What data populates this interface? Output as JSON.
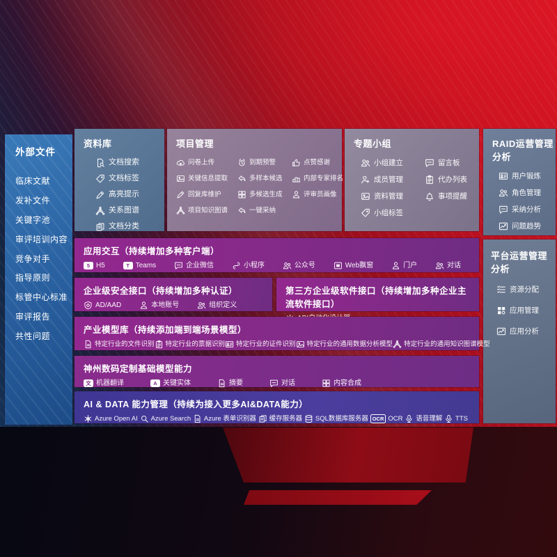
{
  "colors": {
    "screen_red": "#b01020",
    "sidebar_blue": "#2f6cab",
    "row_purple": "#8b2b8c",
    "row_indigo": "#463a97",
    "card_slate": "#68778f",
    "text": "#ffffff"
  },
  "sidebar": {
    "title": "外部文件",
    "items": [
      {
        "label": "临床文献"
      },
      {
        "label": "发补文件"
      },
      {
        "label": "关键字池"
      },
      {
        "label": "审评培训内容"
      },
      {
        "label": "竞争对手"
      },
      {
        "label": "指导原则"
      },
      {
        "label": "标管中心标准"
      },
      {
        "label": "审评报告"
      },
      {
        "label": "共性问题"
      }
    ]
  },
  "panels": {
    "library": {
      "title": "资料库",
      "items": [
        {
          "label": "文档搜索",
          "icon": "doc-search"
        },
        {
          "label": "文档标签",
          "icon": "tag"
        },
        {
          "label": "高亮提示",
          "icon": "pencil"
        },
        {
          "label": "关系图谱",
          "icon": "graph"
        },
        {
          "label": "文档分类",
          "icon": "copy"
        }
      ]
    },
    "project": {
      "title": "项目管理",
      "items": [
        {
          "label": "问卷上传",
          "icon": "cloud-upload"
        },
        {
          "label": "到期预警",
          "icon": "alarm"
        },
        {
          "label": "点赞感谢",
          "icon": "thumb-up"
        },
        {
          "label": "关键信息提取",
          "icon": "image"
        },
        {
          "label": "多样本候选",
          "icon": "reply"
        },
        {
          "label": "内部专家排名",
          "icon": "podium"
        },
        {
          "label": "回复库维护",
          "icon": "pencil"
        },
        {
          "label": "多候选生成",
          "icon": "puzzle"
        },
        {
          "label": "评审员画像",
          "icon": "person"
        },
        {
          "label": "项目知识图谱",
          "icon": "graph"
        },
        {
          "label": "一键采纳",
          "icon": "reply"
        }
      ]
    },
    "group": {
      "title": "专题小组",
      "items": [
        {
          "label": "小组建立",
          "icon": "people"
        },
        {
          "label": "留言板",
          "icon": "chat"
        },
        {
          "label": "成员管理",
          "icon": "person-add"
        },
        {
          "label": "代办列表",
          "icon": "clipboard"
        },
        {
          "label": "资料管理",
          "icon": "image"
        },
        {
          "label": "事项提醒",
          "icon": "bell"
        },
        {
          "label": "小组标签",
          "icon": "tag"
        }
      ]
    },
    "raid": {
      "title": "RAID运营管理分析",
      "items": [
        {
          "label": "用户锻炼",
          "icon": "id-card"
        },
        {
          "label": "角色管理",
          "icon": "people"
        },
        {
          "label": "采纳分析",
          "icon": "chat"
        },
        {
          "label": "问题趋势",
          "icon": "chart"
        }
      ]
    },
    "platform": {
      "title": "平台运营管理分析",
      "items": [
        {
          "label": "资源分配",
          "icon": "list"
        },
        {
          "label": "应用管理",
          "icon": "grid"
        },
        {
          "label": "应用分析",
          "icon": "chart"
        }
      ]
    },
    "interaction": {
      "title": "应用交互（持续增加多种客户端）",
      "items": [
        {
          "label": "H5",
          "icon": "html5"
        },
        {
          "label": "Teams",
          "icon": "teams"
        },
        {
          "label": "企业微信",
          "icon": "chat"
        },
        {
          "label": "小程序",
          "icon": "miniapp"
        },
        {
          "label": "公众号",
          "icon": "people"
        },
        {
          "label": "Web飘窗",
          "icon": "window"
        },
        {
          "label": "门户",
          "icon": "person"
        },
        {
          "label": "对话",
          "icon": "people"
        }
      ]
    },
    "security": {
      "title": "企业级安全接口（持续增加多种认证）",
      "items": [
        {
          "label": "AD/AAD",
          "icon": "shield"
        },
        {
          "label": "本地账号",
          "icon": "person"
        },
        {
          "label": "组织定义",
          "icon": "people"
        }
      ]
    },
    "thirdparty": {
      "title": "第三方企业级软件接口（持续增加多种企业主流软件接口）",
      "items": [
        {
          "label": "API自动化设计器",
          "icon": "gear"
        }
      ]
    },
    "industry": {
      "title": "产业模型库（持续添加端到端场景模型）",
      "items": [
        {
          "label": "特定行业的文件识别",
          "icon": "doc"
        },
        {
          "label": "特定行业的票据识别",
          "icon": "clipboard"
        },
        {
          "label": "特定行业的证件识别",
          "icon": "id-card"
        },
        {
          "label": "特定行业的通用数据分析模型",
          "icon": "image"
        },
        {
          "label": "特定行业的通用知识图谱模型",
          "icon": "graph"
        }
      ]
    },
    "basemodel": {
      "title": "神州数码定制基础模型能力",
      "items": [
        {
          "label": "机器翻译",
          "icon": "translate"
        },
        {
          "label": "关键实体",
          "icon": "entity"
        },
        {
          "label": "摘要",
          "icon": "doc"
        },
        {
          "label": "对话",
          "icon": "chat"
        },
        {
          "label": "内容合成",
          "icon": "puzzle"
        }
      ]
    },
    "aidata": {
      "title": "AI & DATA 能力管理（持续为接入更多AI&DATA能力）",
      "items": [
        {
          "label": "Azure Open AI",
          "icon": "flower"
        },
        {
          "label": "Azure Search",
          "icon": "search"
        },
        {
          "label": "Azure 表单识别器",
          "icon": "doc"
        },
        {
          "label": "缓存服务器",
          "icon": "copy"
        },
        {
          "label": "SQL数据库服务器",
          "icon": "database"
        },
        {
          "label": "OCR",
          "icon": "ocr"
        },
        {
          "label": "语音理解",
          "icon": "mic"
        },
        {
          "label": "TTS",
          "icon": "mic"
        }
      ]
    }
  }
}
